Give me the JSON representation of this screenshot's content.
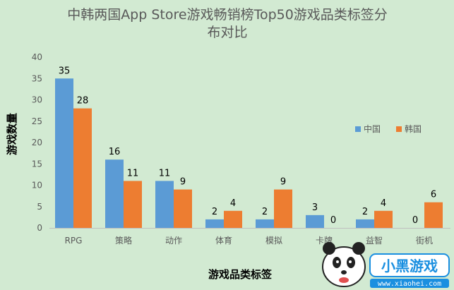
{
  "chart_data": {
    "type": "bar",
    "title_line1": "中韩两国App Store游戏畅销榜Top50游戏品类标签分",
    "title_line2": "布对比",
    "xlabel": "游戏品类标签",
    "ylabel": "游戏数量",
    "ylim": [
      0,
      40
    ],
    "yticks": [
      "0",
      "5",
      "10",
      "15",
      "20",
      "25",
      "30",
      "35",
      "40"
    ],
    "categories": [
      "RPG",
      "策略",
      "动作",
      "体育",
      "模拟",
      "卡牌",
      "益智",
      "街机"
    ],
    "series": [
      {
        "name": "中国",
        "values": [
          35,
          16,
          11,
          2,
          2,
          3,
          2,
          0
        ],
        "color": "#5b9bd5"
      },
      {
        "name": "韩国",
        "values": [
          28,
          11,
          9,
          4,
          9,
          0,
          4,
          6
        ],
        "color": "#ed7d31"
      }
    ],
    "legend_position": "right",
    "grid": false
  },
  "watermark": {
    "brand_text": "小黑游戏",
    "site": "www.xiaohei.com",
    "icon": "panda-icon"
  }
}
